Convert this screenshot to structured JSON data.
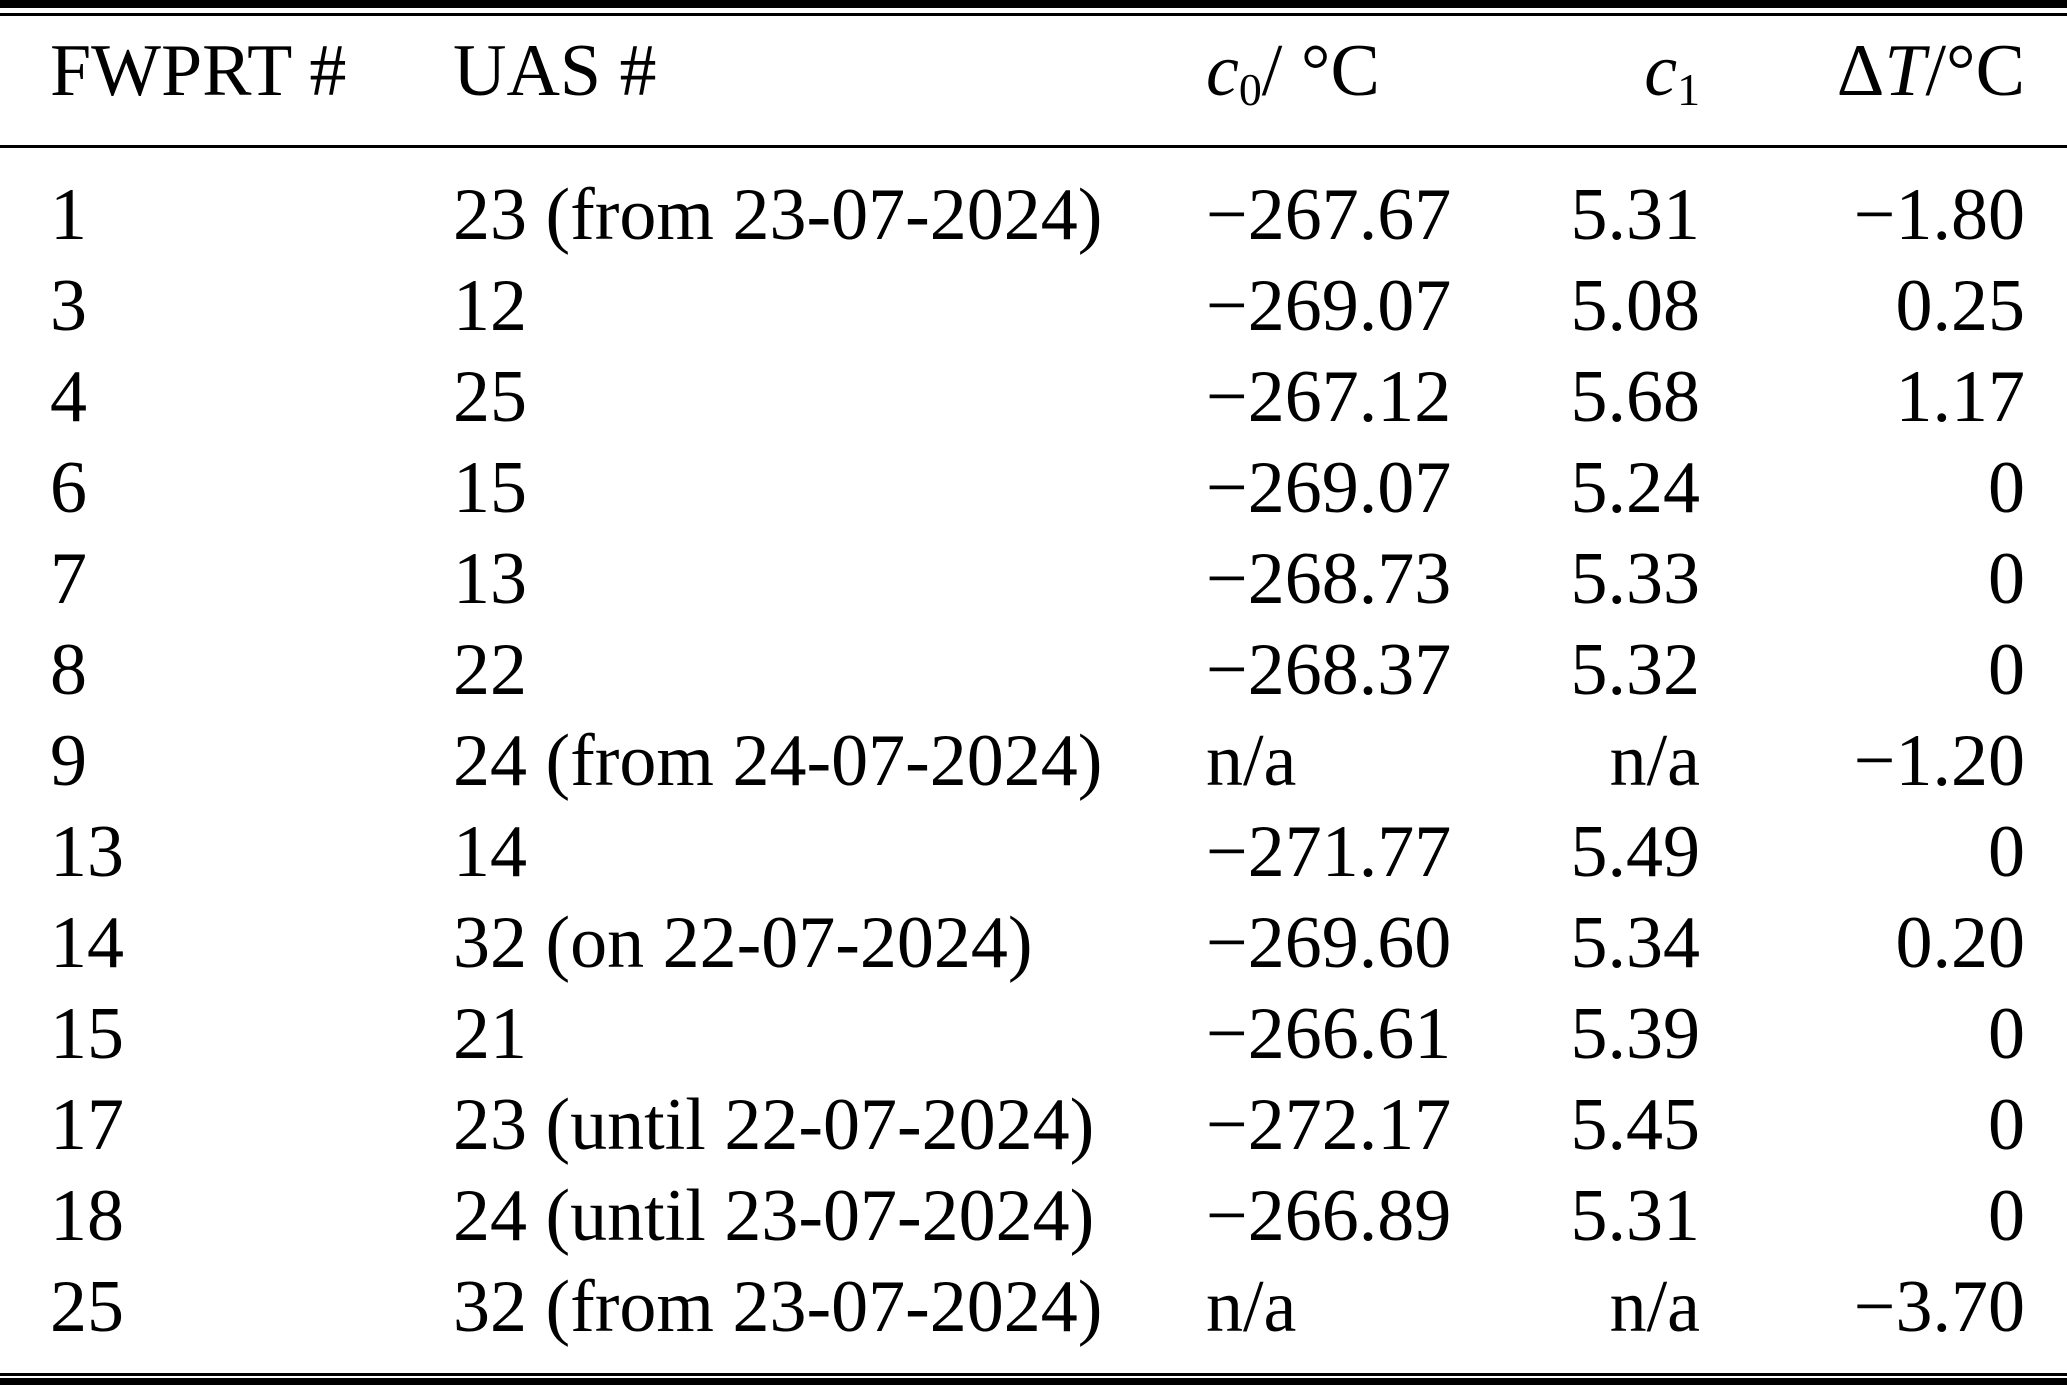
{
  "figure": {
    "kind": "calibration-summary-table",
    "columns": [
      {
        "id": "fwprt",
        "label": "FWPRT #"
      },
      {
        "id": "uas",
        "label": "UAS #"
      },
      {
        "id": "c0",
        "symbol": "c",
        "subscript": "0",
        "suffix": "/ °C"
      },
      {
        "id": "c1",
        "symbol": "c",
        "subscript": "1",
        "suffix": ""
      },
      {
        "id": "dT",
        "prefix": "Δ",
        "symbol": "T",
        "suffix": "/°C"
      }
    ],
    "rows": [
      {
        "fwprt": "1",
        "uas": "23 (from 23-07-2024)",
        "c0": "−267.67",
        "c1": "5.31",
        "dT": "−1.80"
      },
      {
        "fwprt": "3",
        "uas": "12",
        "c0": "−269.07",
        "c1": "5.08",
        "dT": "0.25"
      },
      {
        "fwprt": "4",
        "uas": "25",
        "c0": "−267.12",
        "c1": "5.68",
        "dT": "1.17"
      },
      {
        "fwprt": "6",
        "uas": "15",
        "c0": "−269.07",
        "c1": "5.24",
        "dT": "0"
      },
      {
        "fwprt": "7",
        "uas": "13",
        "c0": "−268.73",
        "c1": "5.33",
        "dT": "0"
      },
      {
        "fwprt": "8",
        "uas": "22",
        "c0": "−268.37",
        "c1": "5.32",
        "dT": "0"
      },
      {
        "fwprt": "9",
        "uas": "24 (from 24-07-2024)",
        "c0": "n/a",
        "c1": "n/a",
        "dT": "−1.20"
      },
      {
        "fwprt": "13",
        "uas": "14",
        "c0": "−271.77",
        "c1": "5.49",
        "dT": "0"
      },
      {
        "fwprt": "14",
        "uas": "32 (on 22-07-2024)",
        "c0": "−269.60",
        "c1": "5.34",
        "dT": "0.20"
      },
      {
        "fwprt": "15",
        "uas": "21",
        "c0": "−266.61",
        "c1": "5.39",
        "dT": "0"
      },
      {
        "fwprt": "17",
        "uas": "23 (until 22-07-2024)",
        "c0": "−272.17",
        "c1": "5.45",
        "dT": "0"
      },
      {
        "fwprt": "18",
        "uas": "24 (until 23-07-2024)",
        "c0": "−266.89",
        "c1": "5.31",
        "dT": "0"
      },
      {
        "fwprt": "25",
        "uas": "32 (from 23-07-2024)",
        "c0": "n/a",
        "c1": "n/a",
        "dT": "−3.70"
      }
    ]
  }
}
